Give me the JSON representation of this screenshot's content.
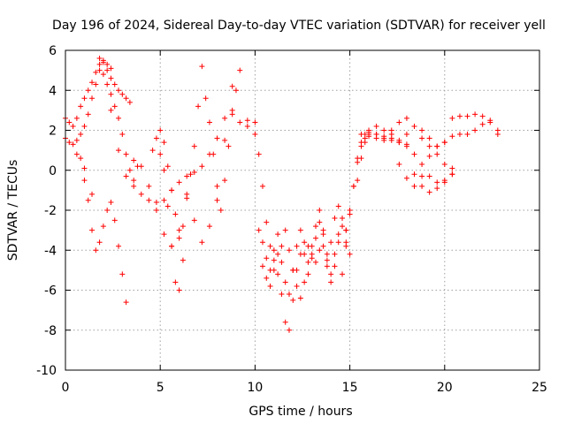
{
  "chart_data": {
    "type": "scatter",
    "title": "Day 196 of 2024, Sidereal Day-to-day VTEC variation (SDTVAR) for receiver yell",
    "xlabel": "GPS time / hours",
    "ylabel": "SDTVAR / TECUs",
    "xlim": [
      0,
      25
    ],
    "ylim": [
      -10,
      6
    ],
    "xticks": [
      "0",
      "5",
      "10",
      "15",
      "20",
      "25"
    ],
    "yticks": [
      "6",
      "4",
      "2",
      "0",
      "-2",
      "-4",
      "-6",
      "-8",
      "-10"
    ],
    "grid": true,
    "marker": "plus",
    "color": "#ff0000",
    "series": [
      {
        "name": "",
        "x": [
          0.0,
          0.2,
          0.4,
          0.6,
          0.8,
          1.0,
          1.2,
          1.4,
          1.6,
          1.8,
          2.0,
          2.2,
          2.4,
          2.6,
          2.8,
          3.0,
          3.2,
          3.4
        ],
        "y": [
          2.6,
          2.4,
          2.2,
          2.6,
          3.2,
          3.6,
          4.0,
          4.4,
          4.9,
          5.3,
          5.5,
          5.0,
          4.6,
          4.3,
          4.0,
          3.8,
          3.6,
          3.4
        ]
      },
      {
        "name": "",
        "x": [
          0.0,
          0.2,
          0.4,
          0.6,
          0.8,
          1.0,
          1.2,
          1.4,
          1.6,
          1.8,
          2.0,
          2.2,
          2.4,
          2.6,
          2.8,
          3.0,
          3.2,
          3.4,
          3.6,
          3.8
        ],
        "y": [
          1.6,
          1.4,
          1.3,
          1.5,
          1.8,
          2.2,
          2.8,
          3.6,
          4.3,
          5.0,
          4.8,
          4.3,
          3.8,
          3.2,
          2.6,
          1.8,
          0.8,
          0.0,
          -0.5,
          0.2
        ]
      },
      {
        "name": "",
        "x": [
          1.0,
          1.2,
          1.4,
          1.6,
          1.8,
          2.0,
          2.2,
          2.4,
          2.6,
          2.8,
          3.0,
          3.2
        ],
        "y": [
          -0.5,
          -1.5,
          -3.0,
          -4.0,
          -3.6,
          -2.8,
          -2.0,
          -1.6,
          -2.5,
          -3.8,
          -5.2,
          -6.6
        ]
      },
      {
        "name": "",
        "x": [
          2.4,
          2.8,
          3.2,
          3.6,
          4.0,
          4.4,
          4.8,
          5.2,
          5.6,
          6.0,
          6.4,
          6.8,
          7.2,
          7.6,
          8.0,
          8.4,
          8.8,
          9.2,
          9.6,
          10.0
        ],
        "y": [
          3.0,
          1.0,
          -0.3,
          -0.8,
          -1.2,
          -1.5,
          -1.6,
          -1.5,
          -1.0,
          -0.6,
          -0.3,
          -0.1,
          0.2,
          0.8,
          1.6,
          2.6,
          2.8,
          2.4,
          2.2,
          2.4
        ]
      },
      {
        "name": "",
        "x": [
          3.6,
          4.0,
          4.4,
          4.8,
          5.2,
          5.6,
          6.0,
          6.4,
          6.8,
          7.2,
          7.6,
          8.0,
          8.4,
          8.8,
          9.2,
          9.6
        ],
        "y": [
          0.5,
          0.2,
          -0.8,
          -2.0,
          -3.2,
          -3.8,
          -3.0,
          -1.2,
          -2.5,
          -3.6,
          -2.8,
          -1.5,
          1.5,
          4.2,
          5.0,
          2.5
        ]
      },
      {
        "name": "",
        "x": [
          4.6,
          4.8,
          5.0,
          5.2,
          5.4,
          5.6,
          5.8,
          6.0,
          6.2,
          6.4,
          6.6,
          6.8,
          7.0,
          7.2
        ],
        "y": [
          1.0,
          1.6,
          2.0,
          1.4,
          0.2,
          -1.0,
          -2.2,
          -3.4,
          -2.8,
          -1.4,
          -0.2,
          1.2,
          3.2,
          5.2
        ]
      },
      {
        "name": "",
        "x": [
          5.0,
          5.2,
          5.4,
          5.6,
          5.8,
          6.0,
          6.2
        ],
        "y": [
          0.8,
          0.0,
          -1.8,
          -3.8,
          -5.6,
          -6.0,
          -4.5
        ]
      },
      {
        "name": "",
        "x": [
          7.4,
          7.6,
          7.8,
          8.0,
          8.2,
          8.4,
          8.6,
          8.8,
          9.0
        ],
        "y": [
          3.6,
          2.4,
          0.8,
          -0.8,
          -2.0,
          -0.5,
          1.2,
          3.0,
          4.0
        ]
      },
      {
        "name": "",
        "x": [
          10.0,
          10.2,
          10.4,
          10.6,
          10.8,
          11.0,
          11.2,
          11.4,
          11.6,
          11.8,
          12.0,
          12.2,
          12.4,
          12.6,
          12.8,
          13.0,
          13.2,
          13.4,
          13.6,
          13.8,
          14.0,
          14.2,
          14.4,
          14.6,
          14.8,
          15.0
        ],
        "y": [
          1.8,
          0.8,
          -0.8,
          -2.6,
          -3.8,
          -4.5,
          -5.2,
          -6.2,
          -7.6,
          -8.0,
          -6.5,
          -5.0,
          -4.2,
          -3.6,
          -3.8,
          -4.2,
          -4.6,
          -4.0,
          -3.2,
          -4.5,
          -5.6,
          -4.8,
          -3.6,
          -2.4,
          -3.0,
          -4.2
        ]
      },
      {
        "name": "",
        "x": [
          10.2,
          10.4,
          10.6,
          10.8,
          11.0,
          11.2,
          11.4,
          11.6,
          11.8,
          12.0,
          12.2,
          12.4,
          12.6,
          12.8,
          13.0,
          13.2,
          13.4,
          13.6,
          13.8,
          14.0,
          14.2,
          14.4,
          14.6,
          14.8
        ],
        "y": [
          -3.0,
          -3.6,
          -4.4,
          -5.0,
          -4.0,
          -3.2,
          -4.6,
          -5.6,
          -6.2,
          -5.0,
          -3.8,
          -3.0,
          -4.2,
          -5.2,
          -4.4,
          -3.4,
          -2.6,
          -3.8,
          -4.8,
          -3.6,
          -2.4,
          -1.8,
          -2.8,
          -3.6
        ]
      },
      {
        "name": "",
        "x": [
          10.4,
          10.6,
          10.8,
          11.0,
          11.2,
          11.4,
          11.6,
          11.8,
          12.0,
          12.2,
          12.4,
          12.6,
          12.8,
          13.0,
          13.2,
          13.4,
          13.6,
          13.8,
          14.0,
          14.2,
          14.4
        ],
        "y": [
          -4.8,
          -5.4,
          -5.8,
          -5.0,
          -4.2,
          -3.8,
          -3.0,
          -4.0,
          -5.0,
          -5.8,
          -6.4,
          -5.6,
          -4.6,
          -3.8,
          -2.8,
          -2.0,
          -3.0,
          -4.2,
          -5.2,
          -4.2,
          -3.2
        ]
      },
      {
        "name": "",
        "x": [
          14.6,
          14.8,
          15.0,
          15.2,
          15.4,
          15.6,
          15.8,
          16.0,
          16.4,
          16.8,
          17.2,
          17.6,
          18.0,
          18.4,
          18.8,
          19.2,
          19.6,
          20.0,
          20.4
        ],
        "y": [
          -5.2,
          -3.8,
          -2.2,
          -0.8,
          0.4,
          1.2,
          1.6,
          1.7,
          1.6,
          1.5,
          1.5,
          1.4,
          1.2,
          0.8,
          0.3,
          -0.3,
          -0.6,
          -0.5,
          0.1
        ]
      },
      {
        "name": "",
        "x": [
          14.8,
          15.0,
          15.2,
          15.4,
          15.6,
          15.8,
          16.0,
          16.4,
          16.8,
          17.2,
          17.6,
          18.0,
          18.4,
          18.8,
          19.2,
          19.6,
          20.0,
          20.4
        ],
        "y": [
          -3.0,
          -2.0,
          -0.8,
          0.6,
          1.4,
          1.8,
          1.9,
          1.8,
          1.7,
          2.0,
          2.4,
          2.6,
          2.2,
          1.6,
          1.2,
          0.8,
          0.3,
          -0.2
        ]
      },
      {
        "name": "",
        "x": [
          15.4,
          15.6,
          15.8,
          16.0,
          16.4,
          16.8,
          17.2,
          17.6,
          18.0,
          18.4,
          18.8,
          19.2,
          19.6,
          20.0,
          20.4
        ],
        "y": [
          -0.5,
          0.6,
          1.4,
          1.8,
          1.8,
          1.6,
          1.6,
          1.5,
          1.3,
          -0.2,
          -0.8,
          -1.1,
          -0.9,
          -0.6,
          -0.2
        ]
      },
      {
        "name": "",
        "x": [
          15.6,
          16.0,
          16.4,
          16.8,
          17.2,
          17.6,
          18.0,
          18.4,
          18.8,
          19.2,
          19.6,
          20.0,
          20.4,
          20.8,
          21.2,
          21.6,
          22.0,
          22.4,
          22.8
        ],
        "y": [
          1.8,
          2.0,
          2.2,
          2.0,
          1.8,
          1.4,
          1.8,
          2.2,
          2.0,
          1.6,
          1.2,
          1.4,
          1.7,
          1.8,
          1.8,
          2.0,
          2.3,
          2.5,
          1.8
        ]
      },
      {
        "name": "",
        "x": [
          20.4,
          20.8,
          21.2,
          21.6,
          22.0,
          22.4,
          22.8
        ],
        "y": [
          2.6,
          2.7,
          2.7,
          2.8,
          2.7,
          2.4,
          2.0
        ]
      },
      {
        "name": "",
        "x": [
          17.6,
          18.0,
          18.4,
          18.8,
          19.2,
          19.6,
          20.0
        ],
        "y": [
          0.3,
          -0.4,
          -0.8,
          -0.3,
          0.7,
          1.2,
          1.4
        ]
      },
      {
        "name": "",
        "x": [
          1.8,
          2.0,
          2.2,
          2.4
        ],
        "y": [
          5.6,
          5.4,
          5.3,
          5.1
        ]
      },
      {
        "name": "",
        "x": [
          0.6,
          0.8,
          1.0,
          1.4
        ],
        "y": [
          0.8,
          0.6,
          0.1,
          -1.2
        ]
      }
    ]
  }
}
